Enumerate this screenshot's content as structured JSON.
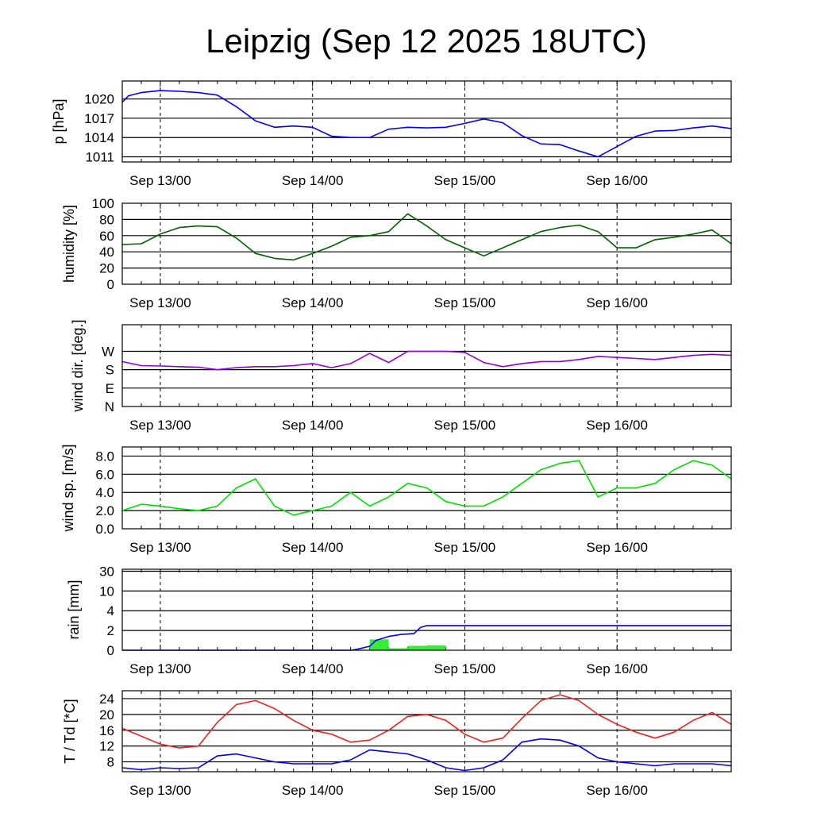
{
  "title": "Leipzig (Sep 12 2025 18UTC)",
  "x_labels": [
    "Sep 13/00",
    "Sep 14/00",
    "Sep 15/00",
    "Sep 16/00"
  ],
  "chart_data": [
    {
      "id": "pressure",
      "type": "line",
      "ylabel": "p [hPa]",
      "ylim": [
        1010.2,
        1022.8
      ],
      "yticks": [
        1011,
        1014,
        1017,
        1020
      ],
      "ytick_labels": [
        "1011",
        "1014",
        "1017",
        "1020"
      ],
      "x_hours": [
        0,
        1,
        3,
        6,
        9,
        12,
        15,
        18,
        21,
        24,
        27,
        30,
        33,
        36,
        39,
        42,
        45,
        48,
        51,
        54,
        57,
        60,
        63,
        66,
        69,
        72,
        75,
        78,
        81,
        84,
        87,
        90,
        93,
        96
      ],
      "series": [
        {
          "name": "pressure",
          "color": "#0000ff",
          "values": [
            1019.5,
            1020.5,
            1021.0,
            1021.3,
            1021.2,
            1021.0,
            1020.6,
            1018.8,
            1016.6,
            1015.6,
            1015.8,
            1015.6,
            1014.2,
            1014.0,
            1014.0,
            1015.3,
            1015.6,
            1015.5,
            1015.6,
            1016.2,
            1016.9,
            1016.3,
            1014.3,
            1013.0,
            1012.9,
            1011.9,
            1011.0,
            1012.6,
            1014.2,
            1015.0,
            1015.1,
            1015.5,
            1015.8,
            1015.4
          ]
        }
      ]
    },
    {
      "id": "humidity",
      "type": "line",
      "ylabel": "humidity [%]",
      "ylim": [
        0,
        100
      ],
      "yticks": [
        0,
        20,
        40,
        60,
        80,
        100
      ],
      "ytick_labels": [
        "0",
        "20",
        "40",
        "60",
        "80",
        "100"
      ],
      "x_hours": [
        0,
        3,
        6,
        9,
        12,
        15,
        18,
        21,
        24,
        27,
        30,
        33,
        36,
        39,
        42,
        45,
        48,
        51,
        54,
        57,
        60,
        63,
        66,
        69,
        72,
        75,
        78,
        81,
        84,
        87,
        90,
        93,
        96
      ],
      "series": [
        {
          "name": "humidity",
          "color": "#006000",
          "values": [
            49,
            50,
            62,
            70,
            72,
            71,
            57,
            38,
            32,
            30,
            38,
            47,
            58,
            60,
            65,
            87,
            72,
            55,
            45,
            35,
            45,
            55,
            65,
            70,
            73,
            65,
            45,
            45,
            55,
            58,
            62,
            67,
            50
          ]
        }
      ]
    },
    {
      "id": "wind_direction",
      "type": "line",
      "ylabel": "wind dir. [deg.]",
      "ylim": [
        0,
        400
      ],
      "yticks": [
        0,
        90,
        180,
        270
      ],
      "ytick_labels": [
        "N",
        "E",
        "S",
        "W"
      ],
      "x_hours": [
        0,
        3,
        6,
        9,
        12,
        15,
        18,
        21,
        24,
        27,
        30,
        33,
        36,
        39,
        42,
        45,
        48,
        51,
        54,
        57,
        60,
        63,
        66,
        69,
        72,
        75,
        78,
        81,
        84,
        87,
        90,
        93,
        96
      ],
      "series": [
        {
          "name": "wind direction",
          "color": "#8e00e0",
          "values": [
            220,
            200,
            198,
            195,
            192,
            180,
            190,
            195,
            195,
            200,
            210,
            190,
            210,
            260,
            215,
            270,
            270,
            270,
            265,
            215,
            195,
            210,
            220,
            220,
            230,
            245,
            240,
            235,
            230,
            240,
            250,
            255,
            250
          ]
        }
      ]
    },
    {
      "id": "wind_speed",
      "type": "line",
      "ylabel": "wind sp. [m/s]",
      "ylim": [
        0,
        9
      ],
      "yticks": [
        0,
        2,
        4,
        6,
        8
      ],
      "ytick_labels": [
        "0.0",
        "2.0",
        "4.0",
        "6.0",
        "8.0"
      ],
      "x_hours": [
        0,
        3,
        6,
        9,
        12,
        15,
        18,
        21,
        24,
        27,
        30,
        33,
        36,
        39,
        42,
        45,
        48,
        51,
        54,
        57,
        60,
        63,
        66,
        69,
        72,
        75,
        78,
        81,
        84,
        87,
        90,
        93,
        96
      ],
      "series": [
        {
          "name": "wind speed",
          "color": "#00e000",
          "values": [
            2.0,
            2.7,
            2.5,
            2.2,
            2.0,
            2.5,
            4.5,
            5.5,
            2.5,
            1.5,
            2.0,
            2.5,
            4.0,
            2.5,
            3.5,
            5.0,
            4.5,
            3.0,
            2.5,
            2.5,
            3.5,
            5.0,
            6.5,
            7.2,
            7.5,
            3.5,
            4.5,
            4.5,
            5.0,
            6.5,
            7.5,
            7.0,
            5.5
          ]
        }
      ]
    },
    {
      "id": "rain",
      "type": "bar+line",
      "ylabel": "rain [mm]",
      "ylim_transformed": [
        0,
        4.1
      ],
      "yticks": [
        0,
        2,
        4,
        10,
        30
      ],
      "ytick_labels": [
        "0",
        "2",
        "4",
        "10",
        "30"
      ],
      "bars": {
        "name": "precipitation",
        "color": "#33ee33",
        "x_start_hours": [
          36,
          39,
          42,
          45,
          48
        ],
        "x_end_hours": [
          39,
          42,
          45,
          48,
          51
        ],
        "values": [
          0.05,
          1.1,
          0.2,
          0.45,
          0.5
        ]
      },
      "series": [
        {
          "name": "accumulated rain",
          "color": "#0000ff",
          "x_hours": [
            0,
            36,
            37,
            39,
            40,
            42,
            43,
            44,
            46,
            47,
            48,
            96
          ],
          "values": [
            0,
            0,
            0.1,
            0.4,
            1.0,
            1.4,
            1.5,
            1.6,
            1.7,
            2.3,
            2.5,
            2.5
          ]
        }
      ]
    },
    {
      "id": "temperature",
      "type": "line",
      "ylabel": "T / Td [*C]",
      "ylim": [
        5.5,
        26
      ],
      "yticks": [
        8,
        12,
        16,
        20,
        24
      ],
      "ytick_labels": [
        "8",
        "12",
        "16",
        "20",
        "24"
      ],
      "x_hours": [
        0,
        3,
        6,
        9,
        12,
        15,
        18,
        21,
        24,
        27,
        30,
        33,
        36,
        39,
        42,
        45,
        48,
        51,
        54,
        57,
        60,
        63,
        66,
        69,
        72,
        75,
        78,
        81,
        84,
        87,
        90,
        93,
        96
      ],
      "series": [
        {
          "name": "T",
          "color": "#ee2222",
          "values": [
            16.5,
            14.5,
            12.5,
            11.5,
            12.0,
            18.0,
            22.5,
            23.5,
            21.5,
            18.5,
            16.0,
            15.0,
            13.0,
            13.5,
            16.0,
            19.5,
            20.0,
            18.5,
            15.0,
            13.0,
            14.0,
            19.0,
            23.5,
            25.0,
            23.5,
            20.0,
            17.5,
            15.5,
            14.0,
            15.5,
            18.5,
            20.5,
            17.5
          ]
        },
        {
          "name": "Td",
          "color": "#0000ee",
          "values": [
            6.5,
            6.0,
            6.5,
            6.3,
            6.5,
            9.5,
            10.0,
            9.0,
            8.0,
            7.5,
            7.5,
            7.5,
            8.5,
            11.0,
            10.5,
            10.0,
            8.5,
            6.5,
            5.8,
            6.5,
            8.5,
            13.0,
            13.8,
            13.5,
            12.0,
            9.0,
            8.0,
            7.5,
            7.0,
            7.5,
            7.5,
            7.5,
            7.0
          ]
        }
      ]
    }
  ]
}
